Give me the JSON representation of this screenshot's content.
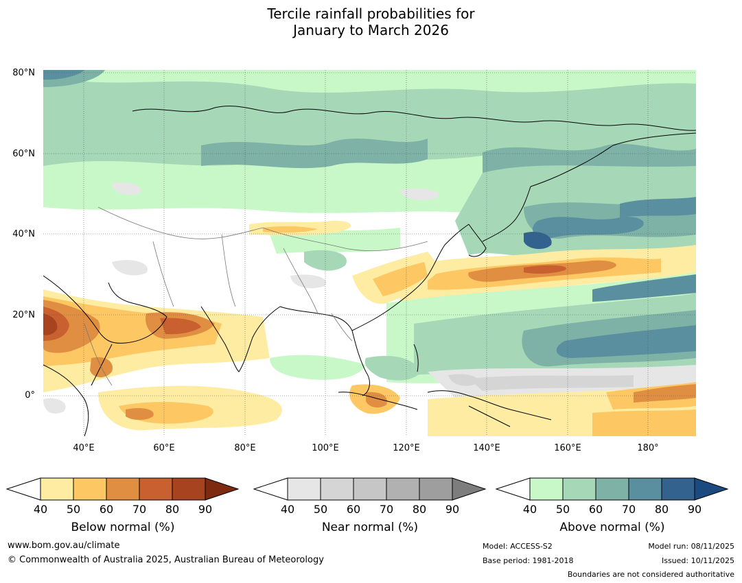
{
  "title": {
    "line1": "Tercile rainfall probabilities for",
    "line2": "January to March 2026"
  },
  "map": {
    "lat_labels": [
      "80°N",
      "60°N",
      "40°N",
      "20°N",
      "0°"
    ],
    "lon_labels": [
      "40°E",
      "60°E",
      "80°E",
      "100°E",
      "120°E",
      "140°E",
      "160°E",
      "180°"
    ],
    "colors": {
      "below": [
        "#fdeca1",
        "#fdc763",
        "#e08f42",
        "#c8602f",
        "#a8431f",
        "#7e2a10"
      ],
      "near": [
        "#e6e6e6",
        "#d5d5d5",
        "#c6c6c6",
        "#b1b1b1",
        "#9e9e9e",
        "#7d7d7d"
      ],
      "above": [
        "#c9f8c8",
        "#a6d8b8",
        "#7fb2a6",
        "#5a8fa0",
        "#33628f",
        "#1a4a80"
      ]
    }
  },
  "colorbars": [
    {
      "label": "Below normal (%)",
      "ticks": [
        "40",
        "50",
        "60",
        "70",
        "80",
        "90"
      ]
    },
    {
      "label": "Near normal (%)",
      "ticks": [
        "40",
        "50",
        "60",
        "70",
        "80",
        "90"
      ]
    },
    {
      "label": "Above normal (%)",
      "ticks": [
        "40",
        "50",
        "60",
        "70",
        "80",
        "90"
      ]
    }
  ],
  "footer": {
    "website": "www.bom.gov.au/climate",
    "copyright": "© Commonwealth of Australia 2025, Australian Bureau of Meteorology",
    "model": "Model: ACCESS-S2",
    "base_period": "Base period: 1981-2018",
    "model_run": "Model run: 08/11/2025",
    "issued": "Issued: 10/11/2025",
    "disclaimer": "Boundaries are not considered authoritative"
  }
}
